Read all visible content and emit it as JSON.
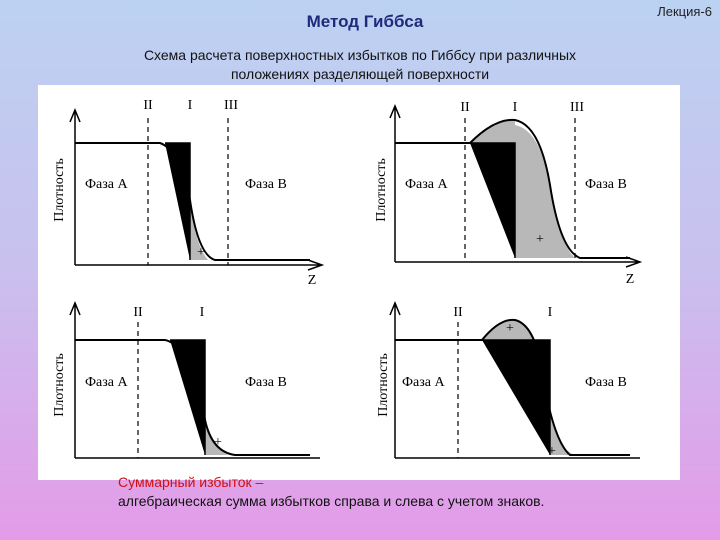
{
  "header": {
    "title": "Метод Гиббса",
    "lecture": "Лекция-6"
  },
  "subtitle": [
    "Схема расчета поверхностных избытков по Гиббсу при различных",
    "положениях разделяющей поверхности"
  ],
  "panels": [
    {
      "planes": [
        "II",
        "I",
        "III"
      ],
      "signs": [
        "-",
        "+"
      ],
      "phase_a": "Фаза А",
      "phase_b": "Фаза В",
      "x_label": "Z",
      "y_label": "Плотность"
    },
    {
      "planes": [
        "II",
        "I",
        "III"
      ],
      "signs": [
        "+"
      ],
      "phase_a": "Фаза А",
      "phase_b": "Фаза В",
      "x_label": "Z",
      "y_label": "Плотность"
    },
    {
      "planes": [
        "II",
        "I"
      ],
      "signs": [
        "-",
        "+"
      ],
      "phase_a": "Фаза А",
      "phase_b": "Фаза В",
      "y_label": "Плотность"
    },
    {
      "planes": [
        "II",
        "I"
      ],
      "signs": [
        "+",
        "-",
        "+"
      ],
      "phase_a": "Фаза А",
      "phase_b": "Фаза В",
      "y_label": "Плотность"
    }
  ],
  "footer": {
    "highlight": "Суммарный избыток –",
    "text": "алгебраическая сумма избытков справа и слева с учетом знаков."
  }
}
